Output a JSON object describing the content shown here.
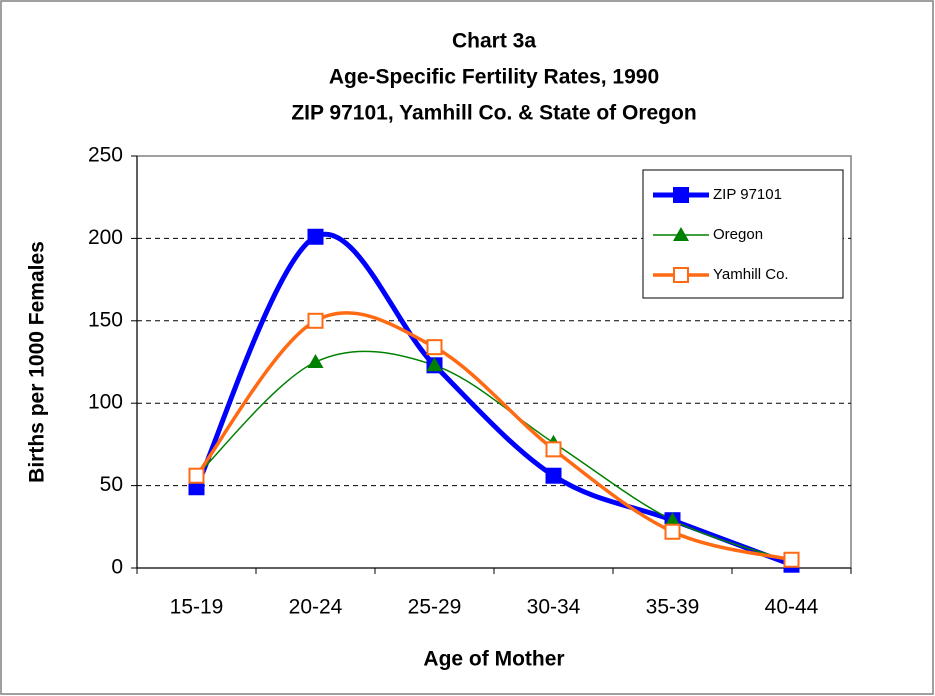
{
  "chart_data": {
    "type": "line",
    "title": [
      "Chart 3a",
      "Age-Specific Fertility Rates, 1990",
      "ZIP 97101, Yamhill Co. & State of Oregon"
    ],
    "xlabel": "Age of Mother",
    "ylabel": "Births per 1000 Females",
    "categories": [
      "15-19",
      "20-24",
      "25-29",
      "30-34",
      "35-39",
      "40-44"
    ],
    "series": [
      {
        "name": "ZIP 97101",
        "color": "#0000ff",
        "marker": "square",
        "values": [
          49,
          201,
          123,
          56,
          29,
          2
        ]
      },
      {
        "name": "Oregon",
        "color": "#008000",
        "marker": "triangle",
        "values": [
          56,
          125,
          123,
          76,
          29,
          4
        ]
      },
      {
        "name": "Yamhill Co.",
        "color": "#ff6a13",
        "marker": "open-square",
        "values": [
          56,
          150,
          134,
          72,
          22,
          5
        ]
      }
    ],
    "ylim": [
      0,
      250
    ],
    "yticks": [
      0,
      50,
      100,
      150,
      200,
      250
    ],
    "grid": true,
    "smooth": true,
    "legend": "upper right"
  }
}
